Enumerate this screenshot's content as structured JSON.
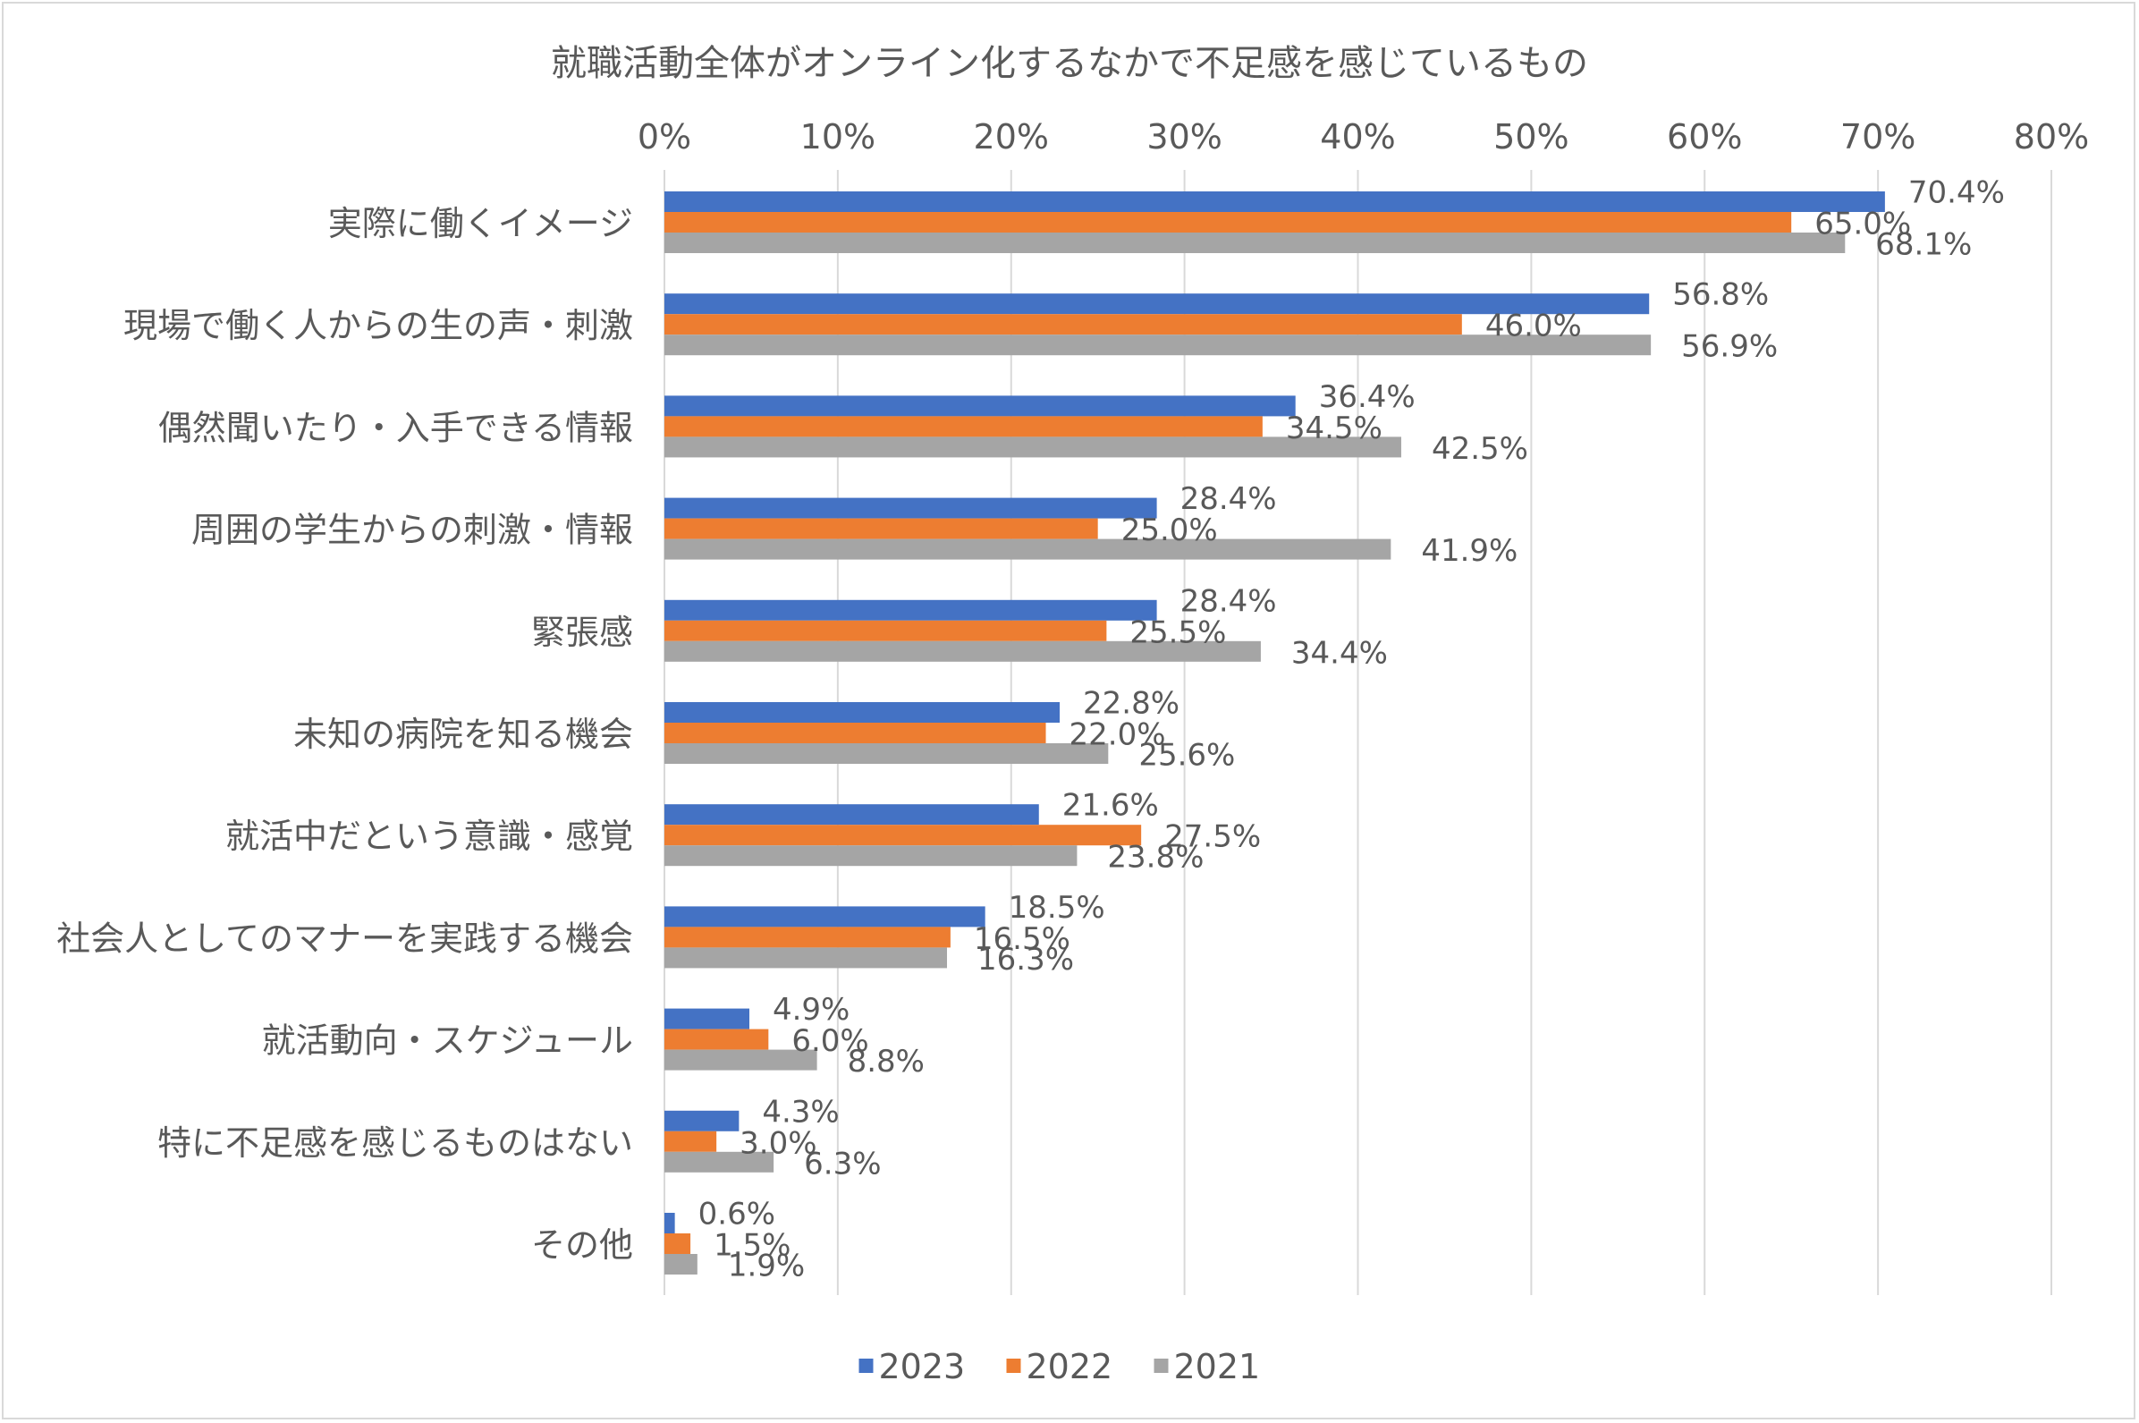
{
  "chart_data": {
    "type": "bar",
    "orientation": "horizontal",
    "title": "就職活動全体がオンライン化するなかで不足感を感じているもの",
    "xlabel": "",
    "ylabel": "",
    "xlim": [
      0,
      80
    ],
    "tick_step": 10,
    "tick_suffix": "%",
    "grid": true,
    "legend_position": "bottom",
    "categories": [
      "実際に働くイメージ",
      "現場で働く人からの生の声・刺激",
      "偶然聞いたり・入手できる情報",
      "周囲の学生からの刺激・情報",
      "緊張感",
      "未知の病院を知る機会",
      "就活中だという意識・感覚",
      "社会人としてのマナーを実践する機会",
      "就活動向・スケジュール",
      "特に不足感を感じるものはない",
      "その他"
    ],
    "series": [
      {
        "name": "2023",
        "color": "#4472c4",
        "values": [
          70.4,
          56.8,
          36.4,
          28.4,
          28.4,
          22.8,
          21.6,
          18.5,
          4.9,
          4.3,
          0.6
        ]
      },
      {
        "name": "2022",
        "color": "#ed7d31",
        "values": [
          65.0,
          46.0,
          34.5,
          25.0,
          25.5,
          22.0,
          27.5,
          16.5,
          6.0,
          3.0,
          1.5
        ]
      },
      {
        "name": "2021",
        "color": "#a5a5a5",
        "values": [
          68.1,
          56.9,
          42.5,
          41.9,
          34.4,
          25.6,
          23.8,
          16.3,
          8.8,
          6.3,
          1.9
        ]
      }
    ]
  }
}
